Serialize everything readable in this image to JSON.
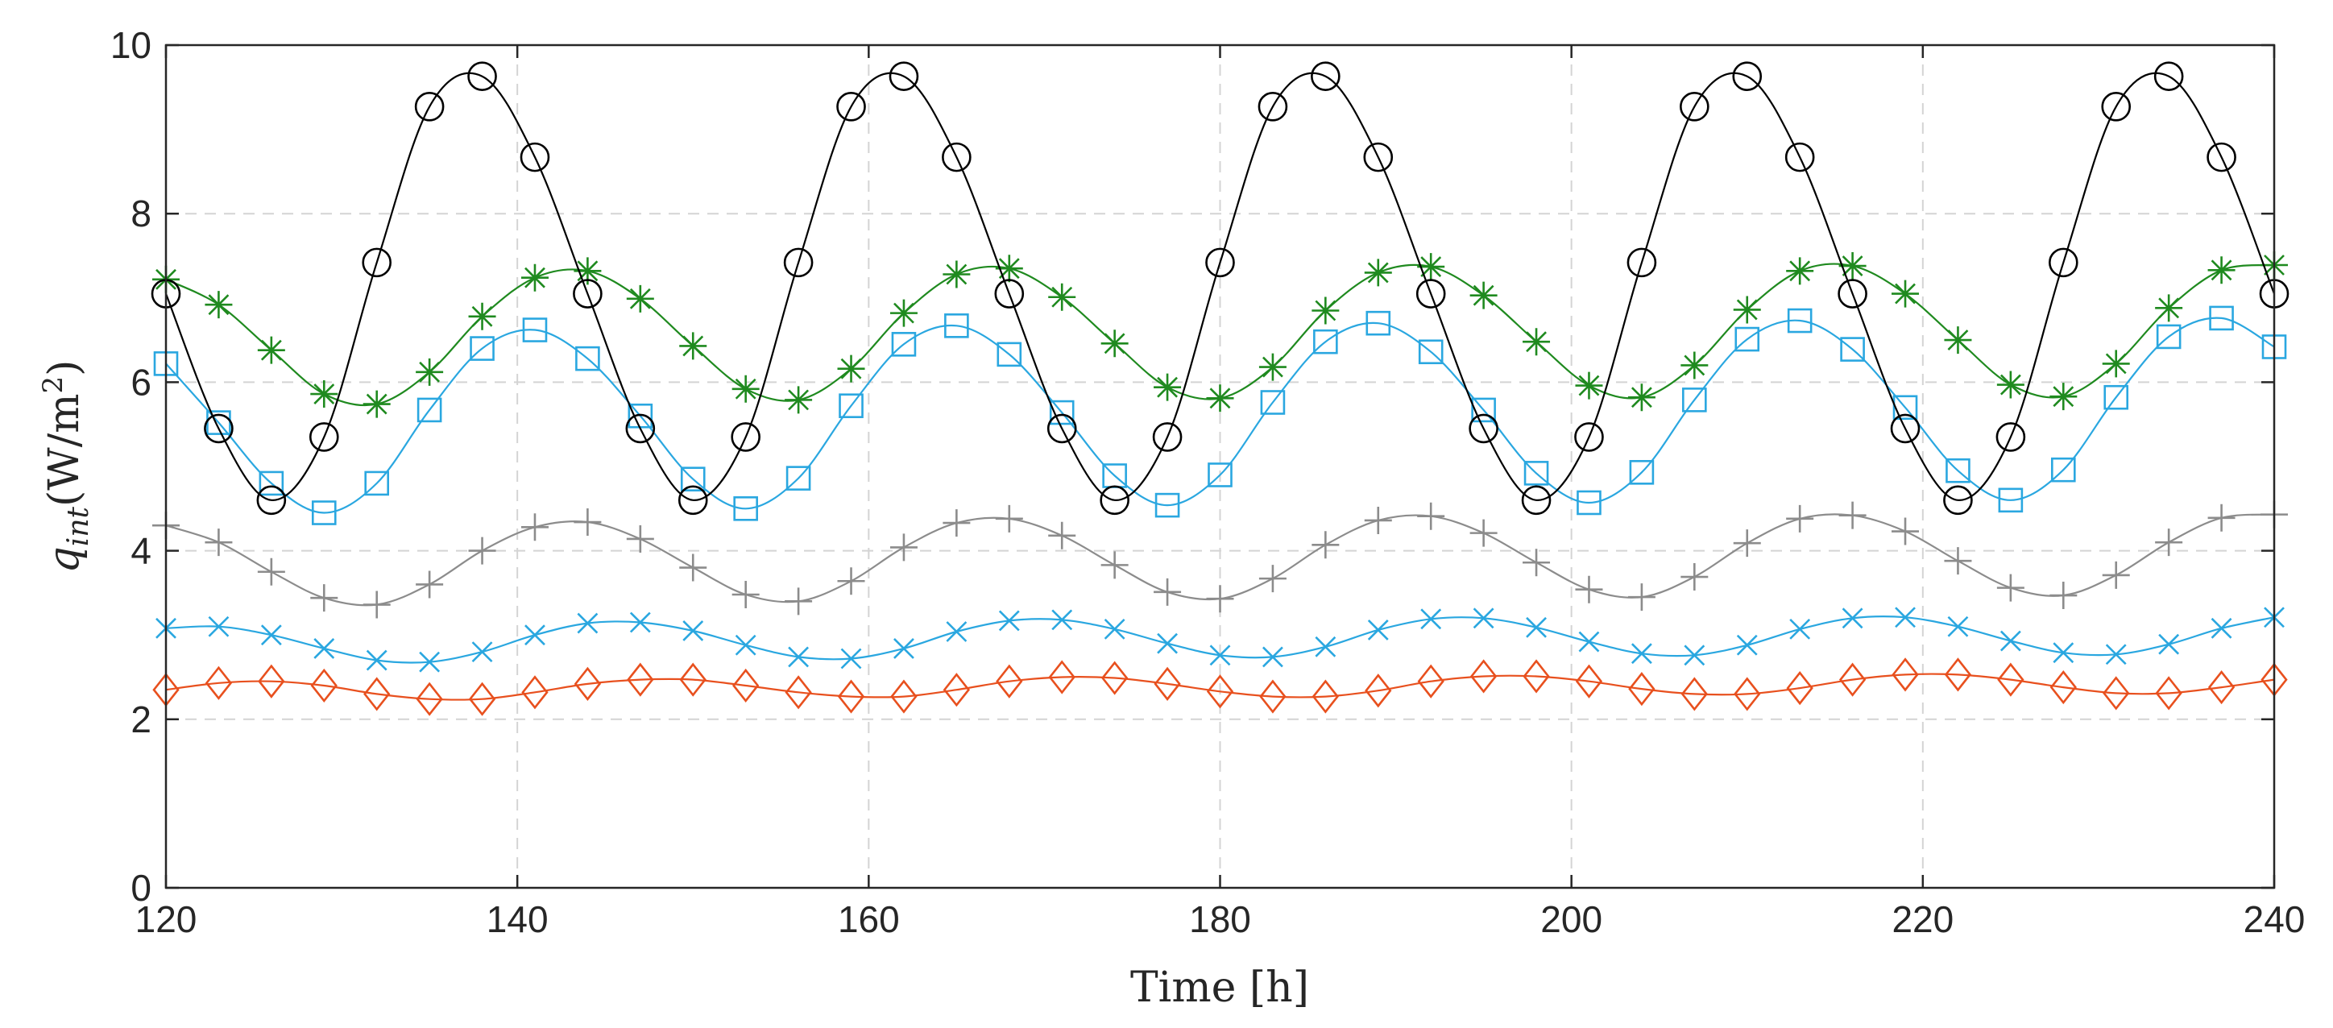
{
  "chart_data": {
    "type": "line",
    "title": "",
    "xlabel": "Time [h]",
    "ylabel": {
      "base": "q",
      "subscript": "int",
      "unit_open": "(W/m",
      "unit_power": "2",
      "unit_close": ")"
    },
    "xlim": [
      120,
      240
    ],
    "ylim": [
      0,
      10
    ],
    "xticks": [
      120,
      140,
      160,
      180,
      200,
      220,
      240
    ],
    "yticks": [
      0,
      2,
      4,
      6,
      8,
      10
    ],
    "grid": true,
    "legend": "none",
    "series": [
      {
        "name": "series-black-circle",
        "color": "#000000",
        "marker": "circle",
        "x": [
          120,
          123,
          126,
          129,
          132,
          135,
          138,
          141,
          144,
          147,
          150,
          153,
          156,
          159,
          162,
          165,
          168,
          171,
          174,
          177,
          180,
          183,
          186,
          189,
          192,
          195,
          198,
          201,
          204,
          207,
          210,
          213,
          216,
          219,
          222,
          225,
          228,
          231,
          234,
          237,
          240
        ],
        "y": [
          7.05,
          5.45,
          4.6,
          5.35,
          7.42,
          9.27,
          9.63,
          8.67,
          7.05,
          5.45,
          4.6,
          5.35,
          7.42,
          9.27,
          9.63,
          8.67,
          7.05,
          5.45,
          4.6,
          5.35,
          7.42,
          9.27,
          9.63,
          8.67,
          7.05,
          5.45,
          4.6,
          5.35,
          7.42,
          9.27,
          9.63,
          8.67,
          7.05,
          5.45,
          4.6,
          5.35,
          7.42,
          9.27,
          9.63,
          8.67,
          7.05
        ]
      },
      {
        "name": "series-green-asterisk",
        "color": "#1f8a1f",
        "marker": "asterisk",
        "x": [
          120,
          123,
          126,
          129,
          132,
          135,
          138,
          141,
          144,
          147,
          150,
          153,
          156,
          159,
          162,
          165,
          168,
          171,
          174,
          177,
          180,
          183,
          186,
          189,
          192,
          195,
          198,
          201,
          204,
          207,
          210,
          213,
          216,
          219,
          222,
          225,
          228,
          231,
          234,
          237,
          240
        ],
        "y": [
          7.22,
          6.92,
          6.38,
          5.86,
          5.74,
          6.12,
          6.78,
          7.24,
          7.32,
          6.99,
          6.43,
          5.92,
          5.79,
          6.16,
          6.82,
          7.28,
          7.35,
          7.01,
          6.46,
          5.94,
          5.81,
          6.18,
          6.85,
          7.3,
          7.37,
          7.03,
          6.48,
          5.96,
          5.82,
          6.2,
          6.86,
          7.32,
          7.38,
          7.05,
          6.5,
          5.97,
          5.83,
          6.22,
          6.88,
          7.33,
          7.39
        ]
      },
      {
        "name": "series-blue-square",
        "color": "#2aa7e0",
        "marker": "square",
        "x": [
          120,
          123,
          126,
          129,
          132,
          135,
          138,
          141,
          144,
          147,
          150,
          153,
          156,
          159,
          162,
          165,
          168,
          171,
          174,
          177,
          180,
          183,
          186,
          189,
          192,
          195,
          198,
          201,
          204,
          207,
          210,
          213,
          216,
          219,
          222,
          225,
          228,
          231,
          234,
          237,
          240
        ],
        "y": [
          6.22,
          5.52,
          4.8,
          4.45,
          4.8,
          5.67,
          6.4,
          6.62,
          6.28,
          5.6,
          4.85,
          4.5,
          4.86,
          5.72,
          6.45,
          6.67,
          6.33,
          5.64,
          4.89,
          4.54,
          4.9,
          5.76,
          6.48,
          6.7,
          6.36,
          5.67,
          4.92,
          4.57,
          4.93,
          5.79,
          6.51,
          6.73,
          6.39,
          5.7,
          4.95,
          4.6,
          4.96,
          5.82,
          6.54,
          6.76,
          6.42
        ]
      },
      {
        "name": "series-gray-plus",
        "color": "#8c8c8c",
        "marker": "plus",
        "x": [
          120,
          123,
          126,
          129,
          132,
          135,
          138,
          141,
          144,
          147,
          150,
          153,
          156,
          159,
          162,
          165,
          168,
          171,
          174,
          177,
          180,
          183,
          186,
          189,
          192,
          195,
          198,
          201,
          204,
          207,
          210,
          213,
          216,
          219,
          222,
          225,
          228,
          231,
          234,
          237,
          240
        ],
        "y": [
          4.3,
          4.1,
          3.75,
          3.44,
          3.36,
          3.6,
          4.0,
          4.28,
          4.34,
          4.14,
          3.8,
          3.48,
          3.4,
          3.64,
          4.04,
          4.33,
          4.38,
          4.18,
          3.83,
          3.51,
          3.43,
          3.67,
          4.07,
          4.36,
          4.41,
          4.21,
          3.86,
          3.54,
          3.45,
          3.69,
          4.09,
          4.38,
          4.42,
          4.23,
          3.88,
          3.56,
          3.47,
          3.71,
          4.1,
          4.39,
          4.43
        ]
      },
      {
        "name": "series-blue-x",
        "color": "#2aa7e0",
        "marker": "x",
        "x": [
          120,
          123,
          126,
          129,
          132,
          135,
          138,
          141,
          144,
          147,
          150,
          153,
          156,
          159,
          162,
          165,
          168,
          171,
          174,
          177,
          180,
          183,
          186,
          189,
          192,
          195,
          198,
          201,
          204,
          207,
          210,
          213,
          216,
          219,
          222,
          225,
          228,
          231,
          234,
          237,
          240
        ],
        "y": [
          3.08,
          3.1,
          3.0,
          2.84,
          2.7,
          2.68,
          2.8,
          3.0,
          3.14,
          3.15,
          3.05,
          2.88,
          2.74,
          2.72,
          2.84,
          3.04,
          3.17,
          3.18,
          3.07,
          2.9,
          2.76,
          2.74,
          2.86,
          3.06,
          3.19,
          3.2,
          3.09,
          2.92,
          2.78,
          2.76,
          2.88,
          3.07,
          3.2,
          3.21,
          3.1,
          2.93,
          2.79,
          2.77,
          2.89,
          3.08,
          3.21
        ]
      },
      {
        "name": "series-red-diamond",
        "color": "#e8501e",
        "marker": "diamond",
        "x": [
          120,
          123,
          126,
          129,
          132,
          135,
          138,
          141,
          144,
          147,
          150,
          153,
          156,
          159,
          162,
          165,
          168,
          171,
          174,
          177,
          180,
          183,
          186,
          189,
          192,
          195,
          198,
          201,
          204,
          207,
          210,
          213,
          216,
          219,
          222,
          225,
          228,
          231,
          234,
          237,
          240
        ],
        "y": [
          2.35,
          2.43,
          2.45,
          2.4,
          2.3,
          2.24,
          2.24,
          2.32,
          2.42,
          2.47,
          2.47,
          2.4,
          2.32,
          2.27,
          2.27,
          2.35,
          2.45,
          2.5,
          2.49,
          2.42,
          2.33,
          2.27,
          2.27,
          2.34,
          2.45,
          2.51,
          2.51,
          2.45,
          2.36,
          2.3,
          2.3,
          2.37,
          2.47,
          2.53,
          2.53,
          2.47,
          2.38,
          2.31,
          2.31,
          2.38,
          2.47
        ]
      }
    ]
  }
}
